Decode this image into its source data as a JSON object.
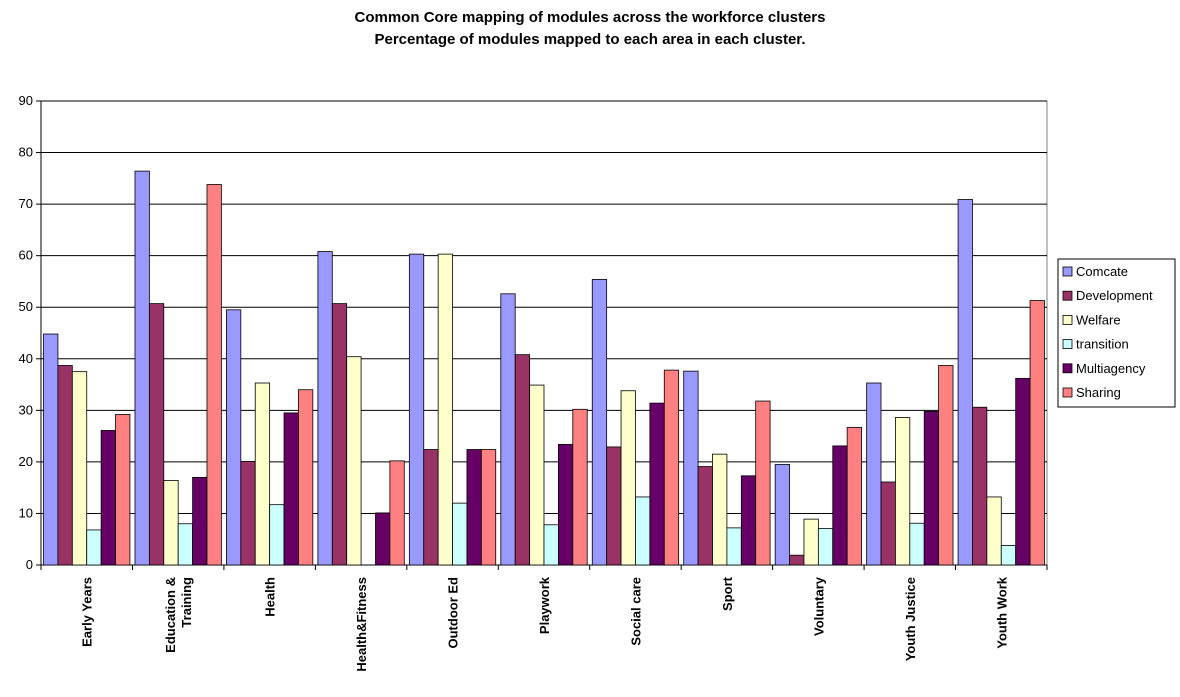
{
  "title": "Common Core mapping of modules across the workforce clusters",
  "subtitle": "Percentage of modules mapped to each area in each cluster.",
  "chart_data": {
    "type": "bar",
    "title": "Common Core mapping of modules across the workforce clusters",
    "subtitle": "Percentage of modules mapped to each area in each cluster.",
    "categories": [
      "Early Years",
      "Education & Training",
      "Health",
      "Health&Fitness",
      "Outdoor Ed",
      "Playwork",
      "Social care",
      "Sport",
      "Voluntary",
      "Youth Justice",
      "Youth Work"
    ],
    "category_lines": [
      [
        "Early Years"
      ],
      [
        "Education &",
        "Training"
      ],
      [
        "Health"
      ],
      [
        "Health&Fitness"
      ],
      [
        "Outdoor Ed"
      ],
      [
        "Playwork"
      ],
      [
        "Social care"
      ],
      [
        "Sport"
      ],
      [
        "Voluntary"
      ],
      [
        "Youth Justice"
      ],
      [
        "Youth Work"
      ]
    ],
    "series": [
      {
        "name": "Comcate",
        "color": "#9999ff",
        "values": [
          44.8,
          76.4,
          49.5,
          60.8,
          60.3,
          52.6,
          55.4,
          37.6,
          19.5,
          35.3,
          70.9
        ]
      },
      {
        "name": "Development",
        "color": "#993366",
        "values": [
          38.7,
          50.7,
          20.1,
          50.7,
          22.4,
          40.8,
          22.9,
          19.1,
          1.9,
          16.1,
          30.6
        ]
      },
      {
        "name": "Welfare",
        "color": "#ffffcc",
        "values": [
          37.5,
          16.4,
          35.3,
          40.4,
          60.3,
          34.9,
          33.8,
          21.5,
          8.9,
          28.6,
          13.2
        ]
      },
      {
        "name": "transition",
        "color": "#ccffff",
        "values": [
          6.8,
          8.0,
          11.7,
          0,
          12.0,
          7.8,
          13.2,
          7.2,
          7.1,
          8.1,
          3.8
        ]
      },
      {
        "name": "Multiagency",
        "color": "#660066",
        "values": [
          26.1,
          17.0,
          29.5,
          10.1,
          22.4,
          23.4,
          31.4,
          17.3,
          23.1,
          29.8,
          36.2
        ]
      },
      {
        "name": "Sharing",
        "color": "#ff8080",
        "values": [
          29.2,
          73.8,
          34.0,
          20.2,
          22.4,
          30.2,
          37.8,
          31.8,
          26.7,
          38.7,
          51.3
        ]
      }
    ],
    "ylim": [
      0,
      90
    ],
    "yticks": [
      0,
      10,
      20,
      30,
      40,
      50,
      60,
      70,
      80,
      90
    ],
    "xlabel": "",
    "ylabel": "",
    "grid": true,
    "legend": "right"
  }
}
